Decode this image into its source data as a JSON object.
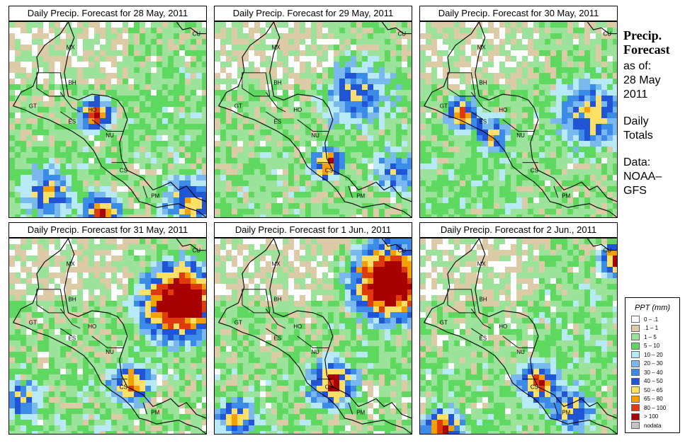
{
  "panels": [
    {
      "title": "Daily Precip. Forecast for  28 May, 2011",
      "seed": 11,
      "storms": [
        {
          "c": [
            0.42,
            0.45
          ],
          "r": 0.05,
          "i": 2.2
        },
        {
          "c": [
            0.18,
            0.85
          ],
          "r": 0.07,
          "i": 1.3
        },
        {
          "c": [
            0.45,
            0.95
          ],
          "r": 0.06,
          "i": 1.8
        },
        {
          "c": [
            0.9,
            0.9
          ],
          "r": 0.08,
          "i": 1.6
        }
      ]
    },
    {
      "title": "Daily Precip. Forecast for  29 May, 2011",
      "seed": 23,
      "storms": [
        {
          "c": [
            0.55,
            0.7
          ],
          "r": 0.05,
          "i": 1.8
        },
        {
          "c": [
            0.9,
            0.75
          ],
          "r": 0.06,
          "i": 1.2
        },
        {
          "c": [
            0.7,
            0.35
          ],
          "r": 0.1,
          "i": 1.0
        }
      ]
    },
    {
      "title": "Daily Precip. Forecast for  30 May, 2011",
      "seed": 37,
      "storms": [
        {
          "c": [
            0.2,
            0.45
          ],
          "r": 0.05,
          "i": 1.8
        },
        {
          "c": [
            0.85,
            0.45
          ],
          "r": 0.09,
          "i": 1.3
        },
        {
          "c": [
            0.35,
            0.55
          ],
          "r": 0.05,
          "i": 1.4
        }
      ]
    },
    {
      "title": "Daily Precip. Forecast for  31 May, 2011",
      "seed": 41,
      "storms": [
        {
          "c": [
            0.85,
            0.3
          ],
          "r": 0.12,
          "i": 2.6
        },
        {
          "c": [
            0.6,
            0.72
          ],
          "r": 0.06,
          "i": 1.8
        },
        {
          "c": [
            0.05,
            0.8
          ],
          "r": 0.05,
          "i": 1.3
        }
      ]
    },
    {
      "title": "Daily Precip. Forecast for  1 Jun., 2011",
      "seed": 53,
      "storms": [
        {
          "c": [
            0.87,
            0.2
          ],
          "r": 0.12,
          "i": 2.8
        },
        {
          "c": [
            0.58,
            0.72
          ],
          "r": 0.07,
          "i": 1.9
        },
        {
          "c": [
            0.1,
            0.9
          ],
          "r": 0.06,
          "i": 1.4
        }
      ]
    },
    {
      "title": "Daily Precip. Forecast for  2 Jun., 2011",
      "seed": 67,
      "storms": [
        {
          "c": [
            0.58,
            0.72
          ],
          "r": 0.06,
          "i": 1.9
        },
        {
          "c": [
            0.1,
            0.95
          ],
          "r": 0.06,
          "i": 1.9
        },
        {
          "c": [
            0.98,
            0.1
          ],
          "r": 0.05,
          "i": 2.2
        },
        {
          "c": [
            0.75,
            0.85
          ],
          "r": 0.07,
          "i": 1.3
        }
      ]
    }
  ],
  "country_labels": [
    "MX",
    "BH",
    "GT",
    "HO",
    "ES",
    "NU",
    "CS",
    "PM",
    "CU"
  ],
  "side": {
    "title_line1": "Precip.",
    "title_line2": "Forecast",
    "asof": "as of:",
    "date1": "28 May",
    "date2": "2011",
    "daily1": "Daily",
    "daily2": "Totals",
    "data1": "Data:",
    "data2": "NOAA–",
    "data3": "GFS"
  },
  "legend": {
    "title": "PPT (mm)",
    "items": [
      {
        "label": "0 – .1",
        "color": "#ffffff"
      },
      {
        "label": ".1 – 1",
        "color": "#ddcba7"
      },
      {
        "label": "1 – 5",
        "color": "#9be39b"
      },
      {
        "label": "5 – 10",
        "color": "#5ed85e"
      },
      {
        "label": "10 – 20",
        "color": "#b7e9f7"
      },
      {
        "label": "20 – 30",
        "color": "#7ab8f0"
      },
      {
        "label": "30 – 40",
        "color": "#3a8ce8"
      },
      {
        "label": "40 – 50",
        "color": "#1f55d6"
      },
      {
        "label": "50 – 65",
        "color": "#ffe066"
      },
      {
        "label": "65 – 80",
        "color": "#f5a000"
      },
      {
        "label": "80 – 100",
        "color": "#e03a0c"
      },
      {
        "label": "> 100",
        "color": "#a80000"
      },
      {
        "label": "nodata",
        "color": "#c4c4c4"
      }
    ]
  }
}
